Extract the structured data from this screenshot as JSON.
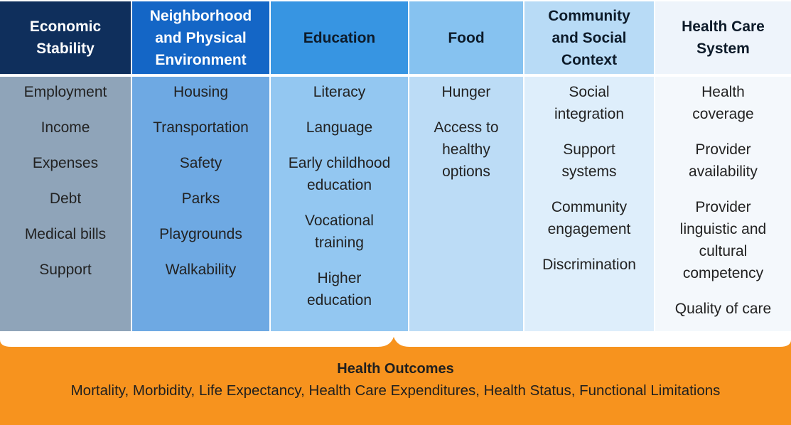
{
  "colors": {
    "accent": "#f7931e",
    "head_dark": "#0f2f5c",
    "head_mid": "#1466c6",
    "head_light": "#eef4fb"
  },
  "columns": [
    {
      "header": [
        "Economic",
        "Stability"
      ],
      "items": [
        [
          "Employment"
        ],
        [
          "Income"
        ],
        [
          "Expenses"
        ],
        [
          "Debt"
        ],
        [
          "Medical bills"
        ],
        [
          "Support"
        ]
      ]
    },
    {
      "header": [
        "Neighborhood",
        "and Physical",
        "Environment"
      ],
      "items": [
        [
          "Housing"
        ],
        [
          "Transportation"
        ],
        [
          "Safety"
        ],
        [
          "Parks"
        ],
        [
          "Playgrounds"
        ],
        [
          "Walkability"
        ]
      ]
    },
    {
      "header": [
        "Education"
      ],
      "items": [
        [
          "Literacy"
        ],
        [
          "Language"
        ],
        [
          "Early childhood",
          "education"
        ],
        [
          "Vocational",
          "training"
        ],
        [
          "Higher",
          "education"
        ]
      ]
    },
    {
      "header": [
        "Food"
      ],
      "items": [
        [
          "Hunger"
        ],
        [
          "Access to",
          "healthy",
          "options"
        ]
      ]
    },
    {
      "header": [
        "Community",
        "and Social",
        "Context"
      ],
      "items": [
        [
          "Social",
          "integration"
        ],
        [
          "Support",
          "systems"
        ],
        [
          "Community",
          "engagement"
        ],
        [
          "Discrimination"
        ]
      ]
    },
    {
      "header": [
        "Health Care",
        "System"
      ],
      "items": [
        [
          "Health",
          "coverage"
        ],
        [
          "Provider",
          "availability"
        ],
        [
          "Provider",
          "linguistic and",
          "cultural",
          "competency"
        ],
        [
          "Quality of care"
        ]
      ]
    }
  ],
  "outcomes": {
    "title": "Health Outcomes",
    "list": "Mortality, Morbidity, Life Expectancy, Health Care Expenditures, Health Status, Functional Limitations"
  }
}
